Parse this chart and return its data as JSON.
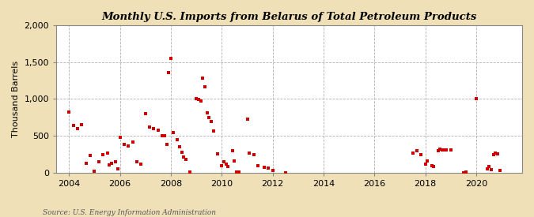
{
  "title": "Monthly U.S. Imports from Belarus of Total Petroleum Products",
  "ylabel": "Thousand Barrels",
  "source": "Source: U.S. Energy Information Administration",
  "background_color": "#f0e0b8",
  "plot_background_color": "#ffffff",
  "marker_color": "#cc0000",
  "marker_size": 9,
  "xlim": [
    2003.5,
    2021.8
  ],
  "ylim": [
    0,
    2000
  ],
  "yticks": [
    0,
    500,
    1000,
    1500,
    2000
  ],
  "xticks": [
    2004,
    2006,
    2008,
    2010,
    2012,
    2014,
    2016,
    2018,
    2020
  ],
  "data_points": [
    [
      2004.0,
      820
    ],
    [
      2004.17,
      640
    ],
    [
      2004.33,
      600
    ],
    [
      2004.5,
      650
    ],
    [
      2004.67,
      130
    ],
    [
      2004.83,
      240
    ],
    [
      2005.0,
      20
    ],
    [
      2005.17,
      150
    ],
    [
      2005.33,
      250
    ],
    [
      2005.5,
      270
    ],
    [
      2005.58,
      110
    ],
    [
      2005.67,
      130
    ],
    [
      2005.83,
      150
    ],
    [
      2005.92,
      50
    ],
    [
      2006.0,
      480
    ],
    [
      2006.17,
      380
    ],
    [
      2006.33,
      360
    ],
    [
      2006.5,
      420
    ],
    [
      2006.67,
      150
    ],
    [
      2006.83,
      120
    ],
    [
      2007.0,
      800
    ],
    [
      2007.17,
      620
    ],
    [
      2007.33,
      600
    ],
    [
      2007.5,
      580
    ],
    [
      2007.67,
      500
    ],
    [
      2007.75,
      500
    ],
    [
      2007.83,
      380
    ],
    [
      2007.92,
      1360
    ],
    [
      2008.0,
      1550
    ],
    [
      2008.08,
      550
    ],
    [
      2008.25,
      450
    ],
    [
      2008.33,
      350
    ],
    [
      2008.42,
      280
    ],
    [
      2008.5,
      210
    ],
    [
      2008.58,
      180
    ],
    [
      2008.75,
      10
    ],
    [
      2009.0,
      1000
    ],
    [
      2009.08,
      990
    ],
    [
      2009.17,
      970
    ],
    [
      2009.25,
      1280
    ],
    [
      2009.33,
      1170
    ],
    [
      2009.42,
      810
    ],
    [
      2009.5,
      750
    ],
    [
      2009.58,
      700
    ],
    [
      2009.67,
      570
    ],
    [
      2009.83,
      260
    ],
    [
      2010.0,
      100
    ],
    [
      2010.08,
      150
    ],
    [
      2010.17,
      120
    ],
    [
      2010.25,
      90
    ],
    [
      2010.42,
      300
    ],
    [
      2010.5,
      160
    ],
    [
      2010.58,
      10
    ],
    [
      2010.67,
      10
    ],
    [
      2011.0,
      730
    ],
    [
      2011.08,
      270
    ],
    [
      2011.25,
      250
    ],
    [
      2011.42,
      100
    ],
    [
      2011.67,
      70
    ],
    [
      2011.83,
      60
    ],
    [
      2012.0,
      30
    ],
    [
      2012.5,
      0
    ],
    [
      2017.5,
      270
    ],
    [
      2017.67,
      300
    ],
    [
      2017.83,
      250
    ],
    [
      2018.0,
      120
    ],
    [
      2018.08,
      160
    ],
    [
      2018.25,
      100
    ],
    [
      2018.33,
      80
    ],
    [
      2018.5,
      300
    ],
    [
      2018.58,
      320
    ],
    [
      2018.67,
      310
    ],
    [
      2018.75,
      310
    ],
    [
      2018.83,
      310
    ],
    [
      2019.0,
      310
    ],
    [
      2019.5,
      0
    ],
    [
      2019.58,
      10
    ],
    [
      2020.0,
      1000
    ],
    [
      2020.42,
      50
    ],
    [
      2020.5,
      80
    ],
    [
      2020.58,
      40
    ],
    [
      2020.67,
      250
    ],
    [
      2020.75,
      270
    ],
    [
      2020.83,
      260
    ],
    [
      2020.92,
      30
    ]
  ]
}
